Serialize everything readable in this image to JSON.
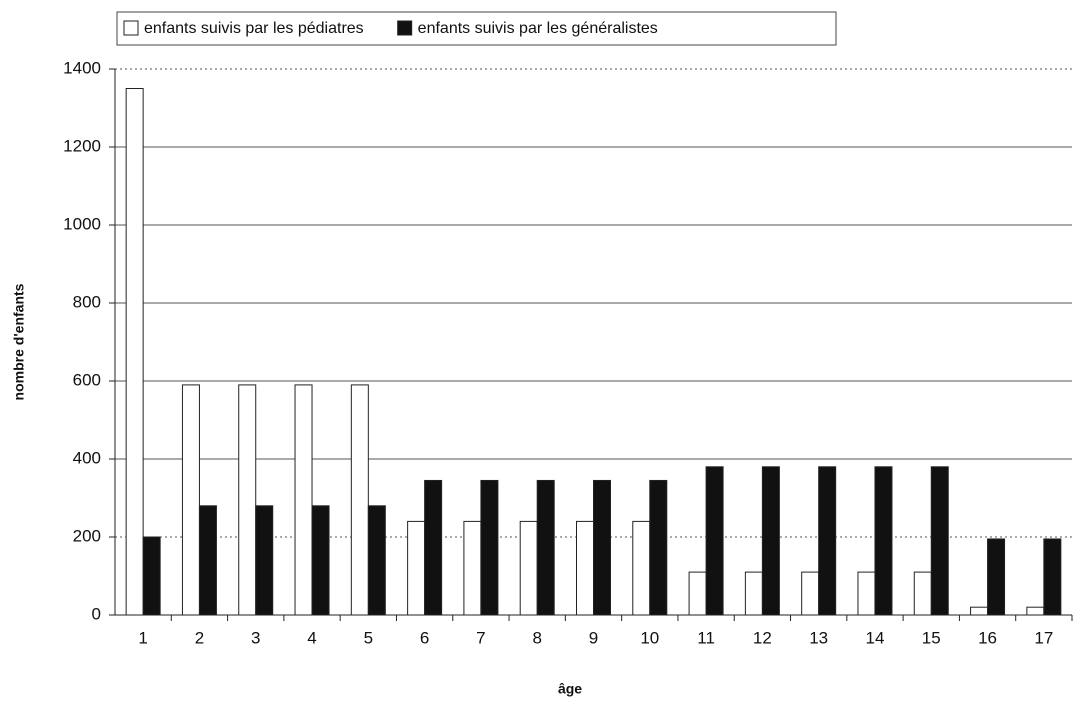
{
  "chart_data": {
    "type": "bar",
    "categories": [
      "1",
      "2",
      "3",
      "4",
      "5",
      "6",
      "7",
      "8",
      "9",
      "10",
      "11",
      "12",
      "13",
      "14",
      "15",
      "16",
      "17"
    ],
    "series": [
      {
        "name": "enfants suivis par les pédiatres",
        "color": "#ffffff",
        "values": [
          1350,
          590,
          590,
          590,
          590,
          240,
          240,
          240,
          240,
          240,
          110,
          110,
          110,
          110,
          110,
          20,
          20
        ]
      },
      {
        "name": "enfants suivis par les généralistes",
        "color": "#111111",
        "values": [
          200,
          280,
          280,
          280,
          280,
          345,
          345,
          345,
          345,
          345,
          380,
          380,
          380,
          380,
          380,
          195,
          195
        ]
      }
    ],
    "xlabel": "âge",
    "ylabel": "nombre d'enfants",
    "ylim": [
      0,
      1400
    ],
    "yticks": [
      0,
      200,
      400,
      600,
      800,
      1000,
      1200,
      1400
    ],
    "grid": true,
    "legend": "top"
  }
}
